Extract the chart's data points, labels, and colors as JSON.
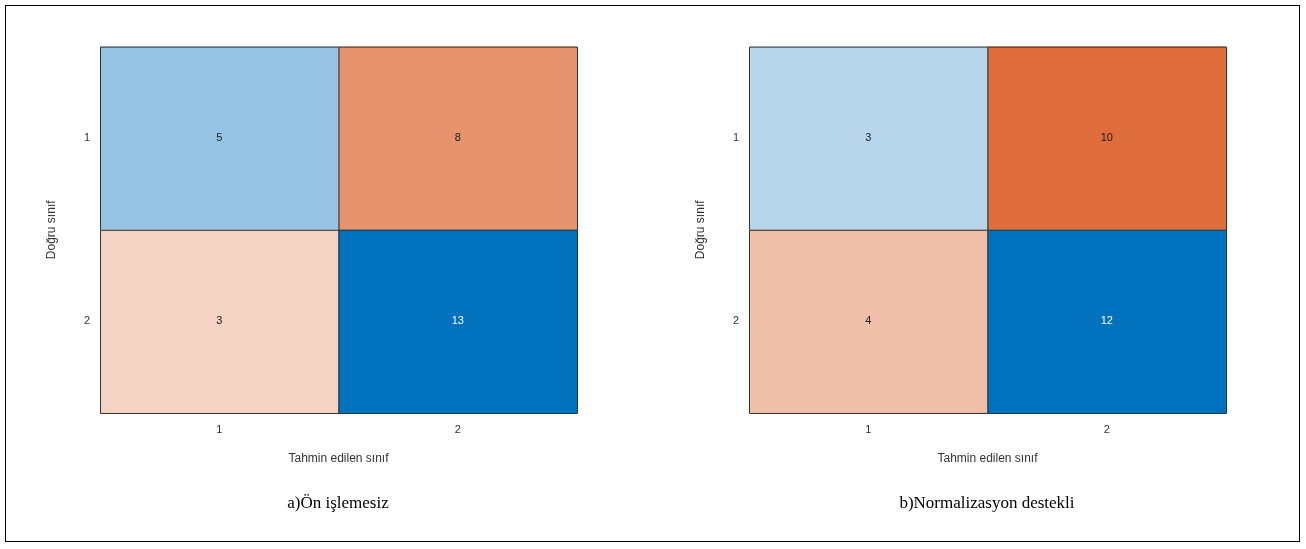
{
  "chart_data": [
    {
      "type": "heatmap",
      "title": "a)Ön işlemesiz",
      "xlabel": "Tahmin edilen sınıf",
      "ylabel": "Doğru sınıf",
      "categories": [
        "1",
        "2"
      ],
      "y_categories": [
        "1",
        "2"
      ],
      "cells": [
        [
          5,
          8
        ],
        [
          3,
          13
        ]
      ],
      "colors": [
        "#97c3e4",
        "#e7946e",
        "#f4d2c4",
        "#0072bd"
      ],
      "data_labels": true,
      "grid": false
    },
    {
      "type": "heatmap",
      "title": "b)Normalizasyon destekli",
      "xlabel": "Tahmin edilen sınıf",
      "ylabel": "Doğru sınıf",
      "categories": [
        "1",
        "2"
      ],
      "y_categories": [
        "1",
        "2"
      ],
      "cells": [
        [
          3,
          10
        ],
        [
          4,
          12
        ]
      ],
      "colors": [
        "#b7d6eb",
        "#df6e3c",
        "#efbfa8",
        "#0072bd"
      ],
      "data_labels": true,
      "grid": false
    }
  ]
}
